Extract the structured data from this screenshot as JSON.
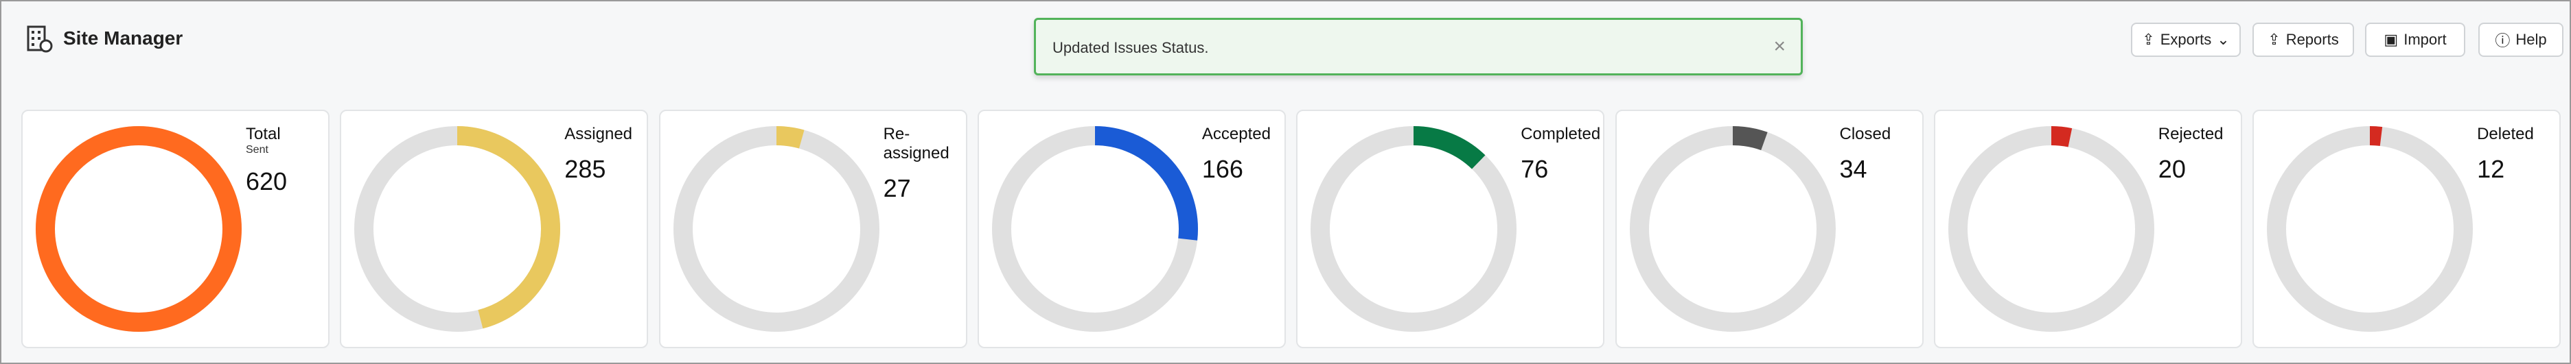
{
  "header": {
    "title": "Site Manager",
    "buttons": [
      "Exports",
      "Reports",
      "Import",
      "Help"
    ]
  },
  "toast": {
    "message": "Updated Issues Status.",
    "close": "×"
  },
  "cards": [
    {
      "label": "Total",
      "sublabel": "Sent",
      "value": 620,
      "color": "#ff6a1f"
    },
    {
      "label": "Assigned",
      "value": 285,
      "color": "#e9c85e"
    },
    {
      "label": "Re-assigned",
      "value": 27,
      "color": "#e9c85e"
    },
    {
      "label": "Accepted",
      "value": 166,
      "color": "#1a5bd6"
    },
    {
      "label": "Completed",
      "value": 76,
      "color": "#077a45"
    },
    {
      "label": "Closed",
      "value": 34,
      "color": "#555555"
    },
    {
      "label": "Rejected",
      "value": 20,
      "color": "#d42a20"
    },
    {
      "label": "Deleted",
      "value": 12,
      "color": "#d42a20"
    }
  ]
}
